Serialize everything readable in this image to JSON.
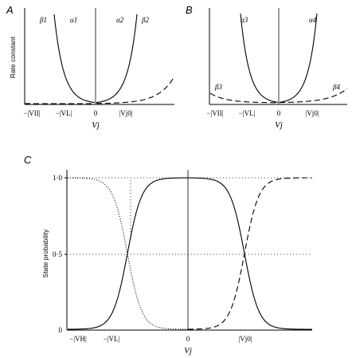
{
  "chart_data": [
    {
      "panel": "A",
      "type": "line",
      "ylabel": "Rate constant",
      "xlabel": "Vj",
      "xticks": [
        "−|VII|",
        "−|VL|",
        "0",
        "|Vj0|"
      ],
      "series": [
        {
          "name": "β1",
          "style": "dashed",
          "shape": "rising toward negative Vj"
        },
        {
          "name": "α1",
          "style": "solid",
          "shape": "rising toward negative Vj"
        },
        {
          "name": "α2",
          "style": "solid",
          "shape": "rising toward positive Vj"
        },
        {
          "name": "β2",
          "style": "dashed",
          "shape": "rising toward positive Vj"
        }
      ]
    },
    {
      "panel": "B",
      "type": "line",
      "xlabel": "Vj",
      "xticks": [
        "−|VII|",
        "−|VL|",
        "0",
        "|Vj0|"
      ],
      "series": [
        {
          "name": "α3",
          "style": "solid",
          "shape": "rising toward negative Vj"
        },
        {
          "name": "β3",
          "style": "dashed",
          "shape": "shallow rise toward negative Vj"
        },
        {
          "name": "α4",
          "style": "solid",
          "shape": "rising toward positive Vj"
        },
        {
          "name": "β4",
          "style": "dashed",
          "shape": "shallow rise toward positive Vj"
        }
      ]
    },
    {
      "panel": "C",
      "type": "line",
      "ylabel": "State probability",
      "xlabel": "Vj",
      "xticks": [
        "−|VH|",
        "−|VL|",
        "0",
        "|Vj0|"
      ],
      "yticks": [
        "0",
        "0·5",
        "1·0"
      ],
      "ylim": [
        0,
        1
      ],
      "series": [
        {
          "name": "",
          "style": "solid",
          "shape": "sigmoid rising from 0 near −|VL| to 1.0"
        },
        {
          "name": "",
          "style": "dotted",
          "shape": "sigmoid falling from 1.0 to 0 near −|VL|"
        },
        {
          "name": "",
          "style": "dashed",
          "shape": "sigmoid rising from 0 to 1.0 near |Vj0|"
        }
      ]
    }
  ],
  "colors": {
    "ink": "#000000",
    "background": "#ffffff"
  }
}
